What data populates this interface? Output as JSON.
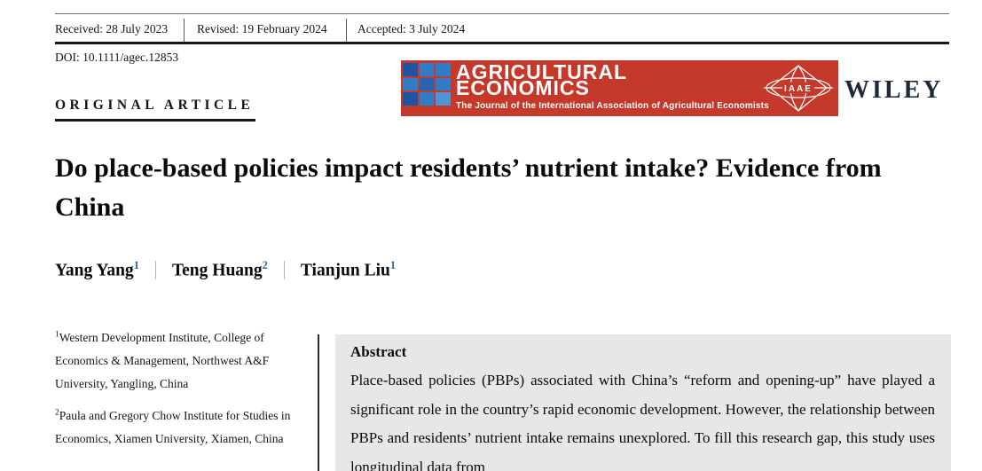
{
  "header": {
    "received": "Received: 28 July 2023",
    "revised": "Revised: 19 February 2024",
    "accepted": "Accepted: 3 July 2024",
    "doi": "DOI: 10.1111/agec.12853"
  },
  "journal_banner": {
    "bg_color": "#c5392b",
    "title_line1": "AGRICULTURAL",
    "title_line2": "ECONOMICS",
    "tagline": "The Journal of the International Association of Agricultural Economists",
    "iaae_label": "IAAE",
    "grid_colors": [
      "#1d55a4",
      "#2f7cc9",
      "#2f7cc9",
      "#2f7cc9",
      "#2566b4",
      "#2f7cc9",
      "#1d55a4",
      "#2f7cc9",
      "#4e95d6"
    ]
  },
  "publisher": {
    "name": "WILEY",
    "color": "#1d2a38"
  },
  "article": {
    "kicker": "ORIGINAL ARTICLE",
    "title": "Do place-based policies impact residents’ nutrient intake? Evidence from China",
    "authors": [
      {
        "name": "Yang Yang",
        "sup": "1"
      },
      {
        "name": "Teng Huang",
        "sup": "2"
      },
      {
        "name": "Tianjun Liu",
        "sup": "1"
      }
    ]
  },
  "affiliations": [
    {
      "sup": "1",
      "text": "Western Development Institute, College of Economics & Management, Northwest A&F University, Yangling, China"
    },
    {
      "sup": "2",
      "text": "Paula and Gregory Chow Institute for Studies in Economics, Xiamen University, Xiamen, China"
    }
  ],
  "abstract": {
    "heading": "Abstract",
    "body": "Place-based policies (PBPs) associated with China’s “reform and opening-up” have played a significant role in the country’s rapid economic development. However, the relationship between PBPs and residents’ nutrient intake remains unexplored. To fill this research gap, this study uses longitudinal data from"
  },
  "colors": {
    "superscript_blue": "#2d679f",
    "abstract_bg": "#e7e7e7",
    "rule_dark": "#161616"
  }
}
